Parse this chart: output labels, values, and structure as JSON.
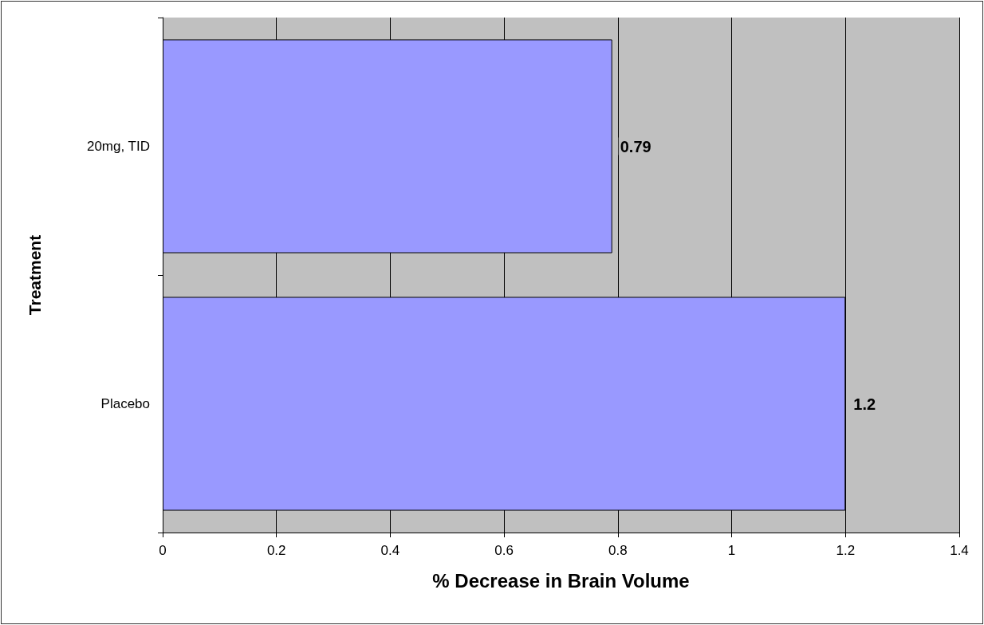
{
  "chart_data": {
    "type": "bar",
    "orientation": "horizontal",
    "xlabel": "% Decrease in Brain Volume",
    "ylabel": "Treatment",
    "categories": [
      "20mg, TID",
      "Placebo"
    ],
    "values": [
      0.79,
      1.2
    ],
    "color": "#9999ff",
    "xlim": [
      0,
      1.4
    ],
    "xticks": [
      0,
      0.2,
      0.4,
      0.6,
      0.8,
      1,
      1.2,
      1.4
    ],
    "grid": "x",
    "data_labels": true
  }
}
